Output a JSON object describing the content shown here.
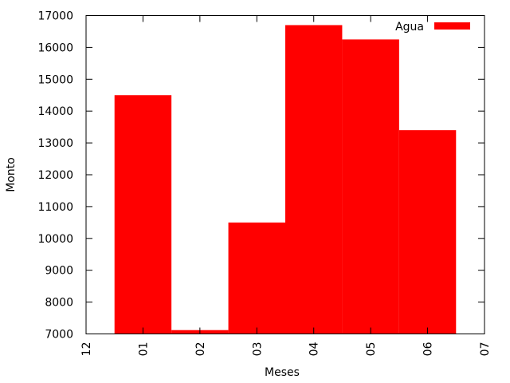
{
  "chart_data": {
    "type": "bar",
    "categories": [
      "12",
      "01",
      "02",
      "03",
      "04",
      "05",
      "06",
      "07"
    ],
    "series": [
      {
        "name": "Agua",
        "color": "#ff0000",
        "values": [
          null,
          14500,
          7120,
          10500,
          16700,
          16250,
          13400,
          null
        ]
      }
    ],
    "xlabel": "Meses",
    "ylabel": "Monto",
    "ylim": [
      7000,
      17000
    ],
    "yticks": [
      7000,
      8000,
      9000,
      10000,
      11000,
      12000,
      13000,
      14000,
      15000,
      16000,
      17000
    ],
    "grid": false,
    "legend_position": "top-right"
  }
}
